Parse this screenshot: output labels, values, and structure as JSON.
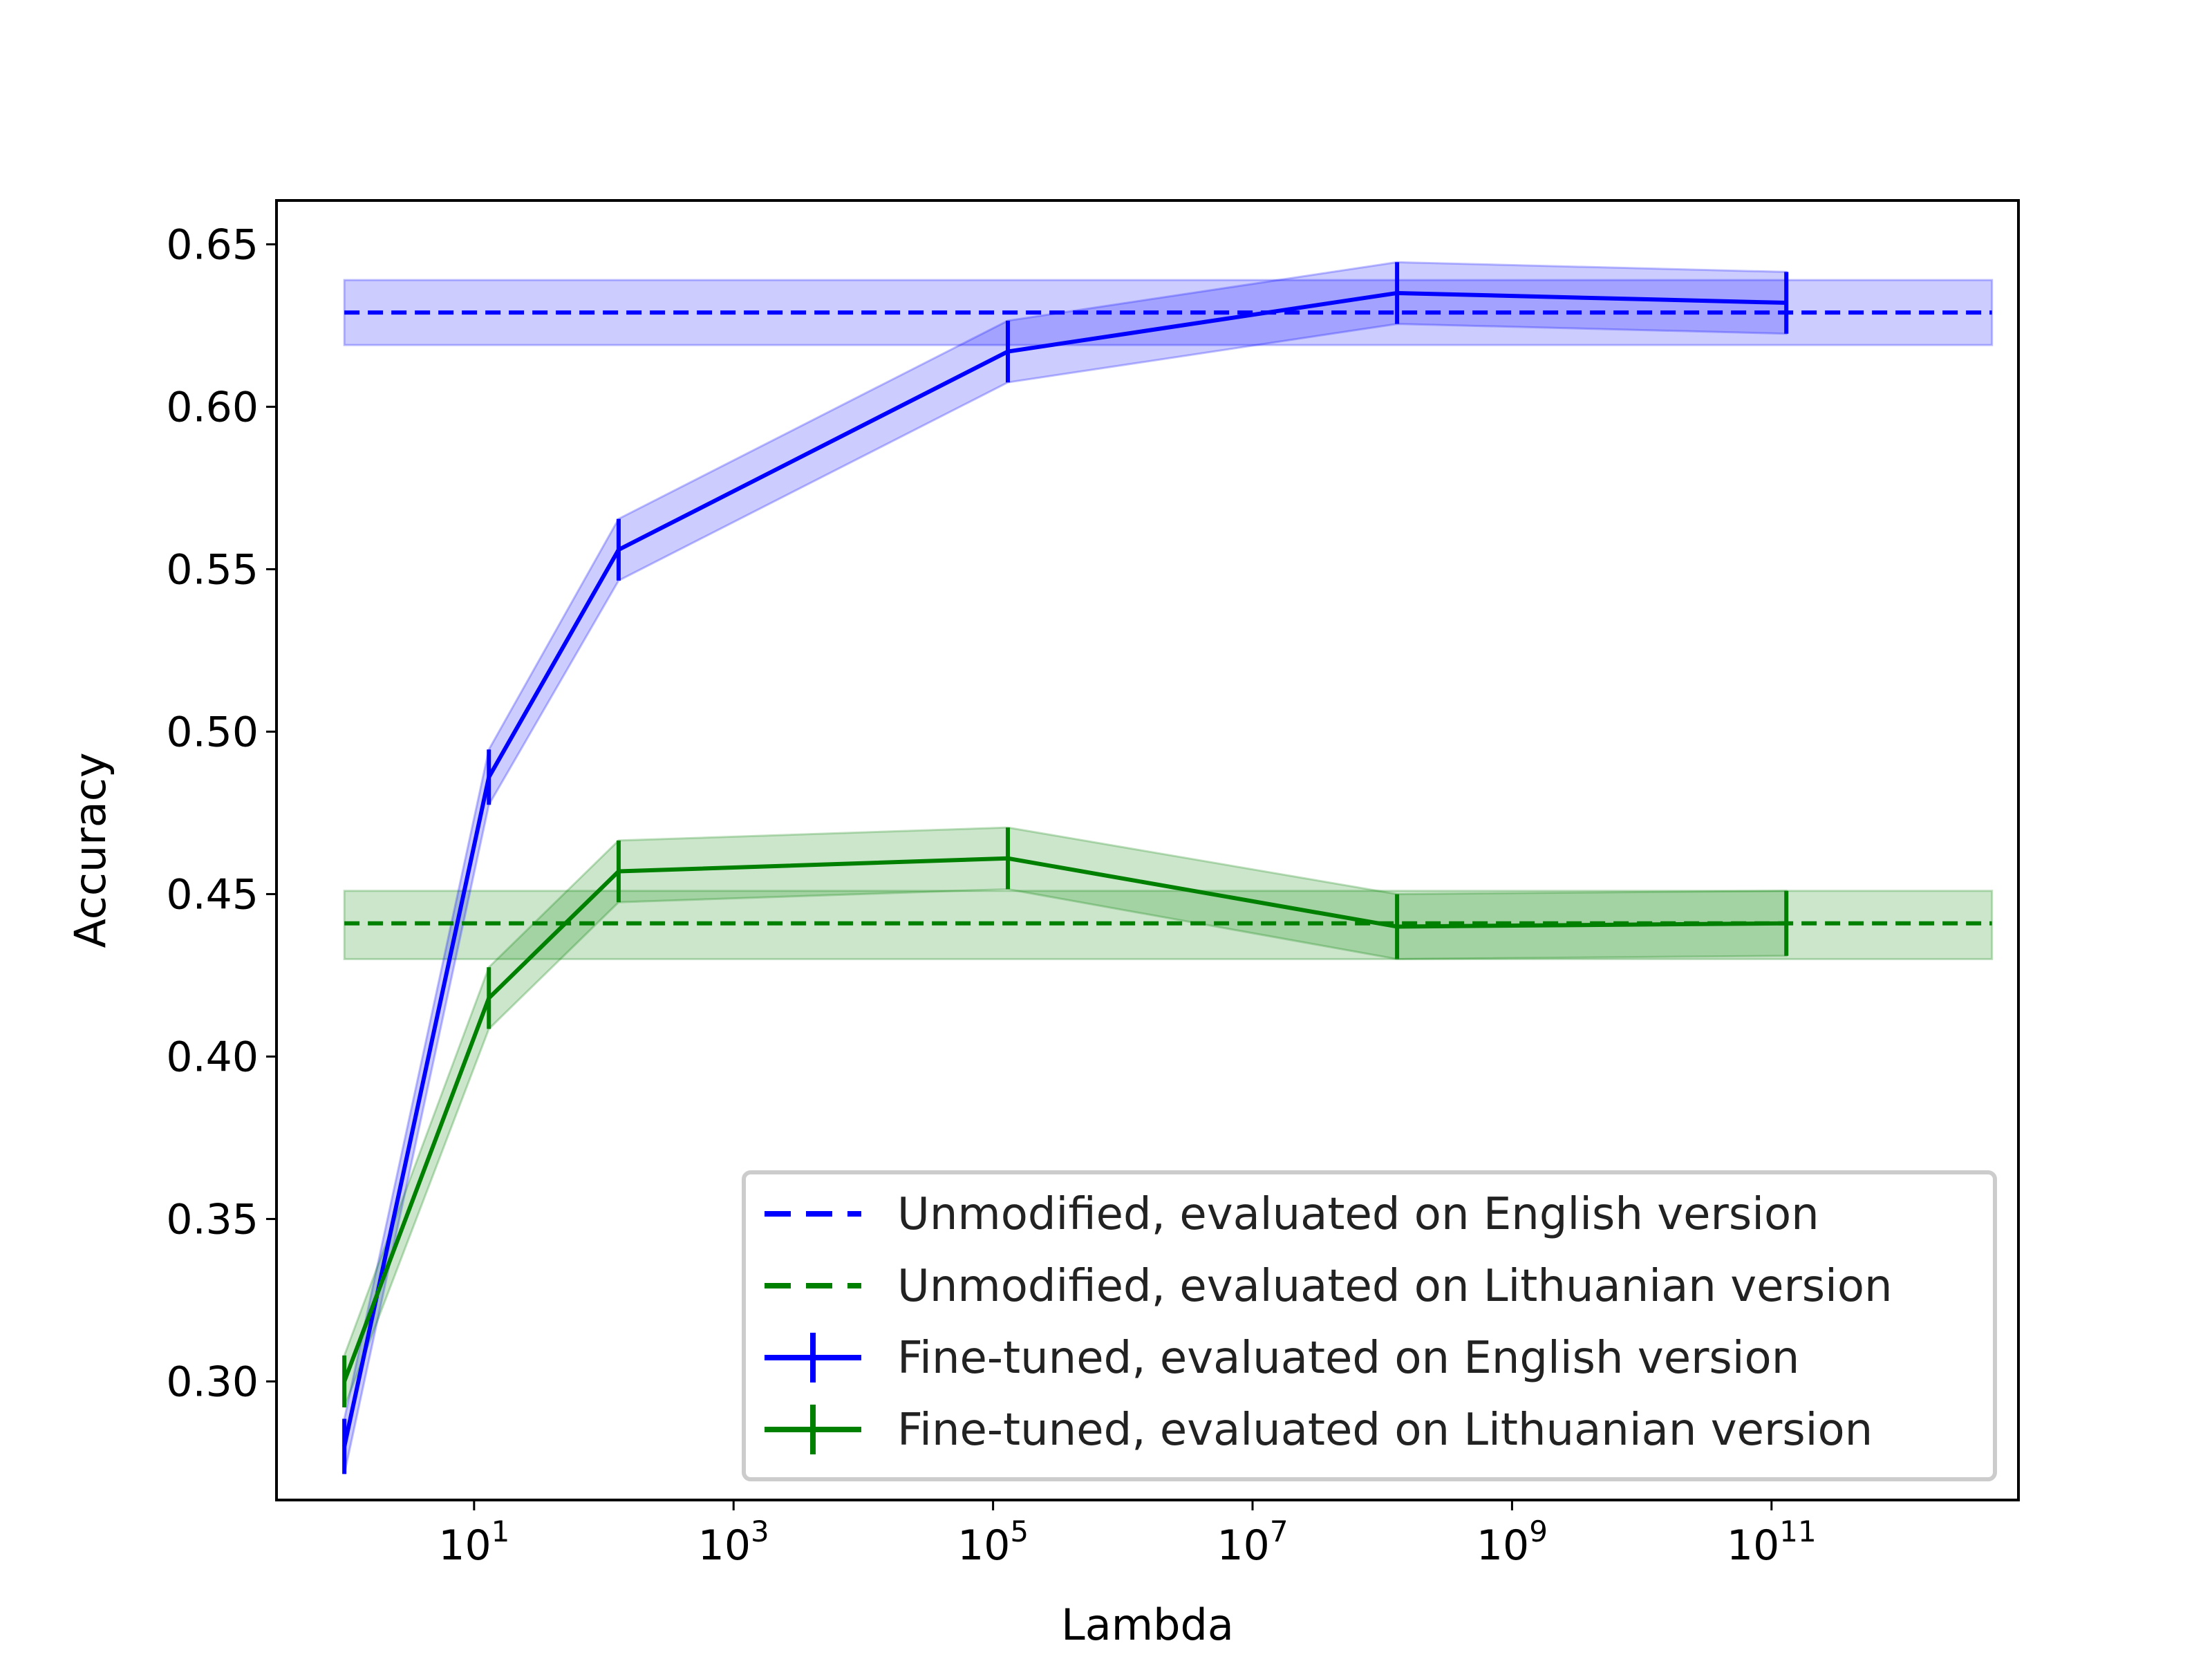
{
  "chart_data": {
    "type": "line",
    "title": "",
    "xlabel": "Lambda",
    "ylabel": "Accuracy",
    "x_scale": "log",
    "xlim": [
      0.3,
      8000000000000.0
    ],
    "ylim": [
      0.2635,
      0.6635
    ],
    "x_ticks": [
      {
        "value": 10,
        "base": "10",
        "exp": "1"
      },
      {
        "value": 1000,
        "base": "10",
        "exp": "3"
      },
      {
        "value": 100000,
        "base": "10",
        "exp": "5"
      },
      {
        "value": 10000000,
        "base": "10",
        "exp": "7"
      },
      {
        "value": 1000000000,
        "base": "10",
        "exp": "9"
      },
      {
        "value": 100000000000,
        "base": "10",
        "exp": "11"
      }
    ],
    "y_ticks": [
      {
        "value": 0.3,
        "label": "0.30"
      },
      {
        "value": 0.35,
        "label": "0.35"
      },
      {
        "value": 0.4,
        "label": "0.40"
      },
      {
        "value": 0.45,
        "label": "0.45"
      },
      {
        "value": 0.5,
        "label": "0.50"
      },
      {
        "value": 0.55,
        "label": "0.55"
      },
      {
        "value": 0.6,
        "label": "0.60"
      },
      {
        "value": 0.65,
        "label": "0.65"
      }
    ],
    "grid": false,
    "legend_position": "lower right",
    "series": [
      {
        "name": "Unmodified, evaluated on English version",
        "kind": "baseline",
        "color": "#0000ff",
        "x": [
          1,
          5000000000000.0
        ],
        "y": [
          0.629,
          0.629
        ],
        "band": [
          0.619,
          0.639
        ]
      },
      {
        "name": "Unmodified, evaluated on Lithuanian version",
        "kind": "baseline",
        "color": "#008000",
        "x": [
          1,
          5000000000000.0
        ],
        "y": [
          0.441,
          0.441
        ],
        "band": [
          0.43,
          0.451
        ]
      },
      {
        "name": "Fine-tuned, evaluated on English version",
        "kind": "errorbar",
        "color": "#0000ff",
        "x": [
          1,
          13,
          130,
          130000,
          130000000,
          130000000000
        ],
        "y": [
          0.28,
          0.486,
          0.556,
          0.617,
          0.635,
          0.632
        ],
        "err": [
          0.0085,
          0.0085,
          0.0095,
          0.0095,
          0.0095,
          0.0095
        ]
      },
      {
        "name": "Fine-tuned, evaluated on Lithuanian version",
        "kind": "errorbar",
        "color": "#008000",
        "x": [
          1,
          13,
          130,
          130000,
          130000000,
          130000000000
        ],
        "y": [
          0.3,
          0.418,
          0.457,
          0.461,
          0.44,
          0.441
        ],
        "err": [
          0.008,
          0.0095,
          0.0095,
          0.0095,
          0.01,
          0.01
        ]
      }
    ]
  }
}
